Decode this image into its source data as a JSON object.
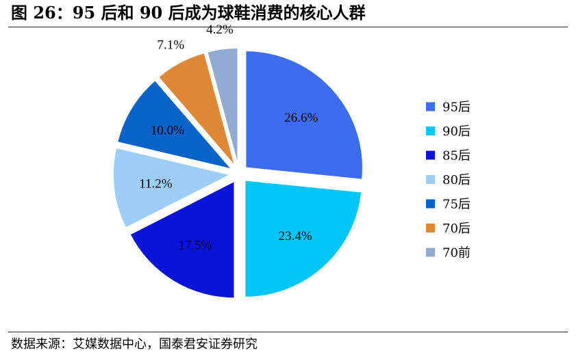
{
  "figure": {
    "title": "图 26：95 后和 90 后成为球鞋消费的核心人群",
    "source": "数据来源：艾媒数据中心，国泰君安证券研究"
  },
  "chart_data": {
    "type": "pie",
    "start_angle_deg": 90,
    "direction": "clockwise",
    "exploded": true,
    "legend_position": "right",
    "slices": [
      {
        "label": "95后",
        "value": 26.6,
        "display": "26.6%",
        "color": "#3c6cf0"
      },
      {
        "label": "90后",
        "value": 23.4,
        "display": "23.4%",
        "color": "#00c5f7"
      },
      {
        "label": "85后",
        "value": 17.5,
        "display": "17.5%",
        "color": "#0a14d8"
      },
      {
        "label": "80后",
        "value": 11.2,
        "display": "11.2%",
        "color": "#9dcdf9"
      },
      {
        "label": "75后",
        "value": 10.0,
        "display": "10.0%",
        "color": "#0a63c8"
      },
      {
        "label": "70后",
        "value": 7.1,
        "display": "7.1%",
        "color": "#de8837"
      },
      {
        "label": "70前",
        "value": 4.2,
        "display": "4.2%",
        "color": "#92abd4"
      }
    ]
  }
}
